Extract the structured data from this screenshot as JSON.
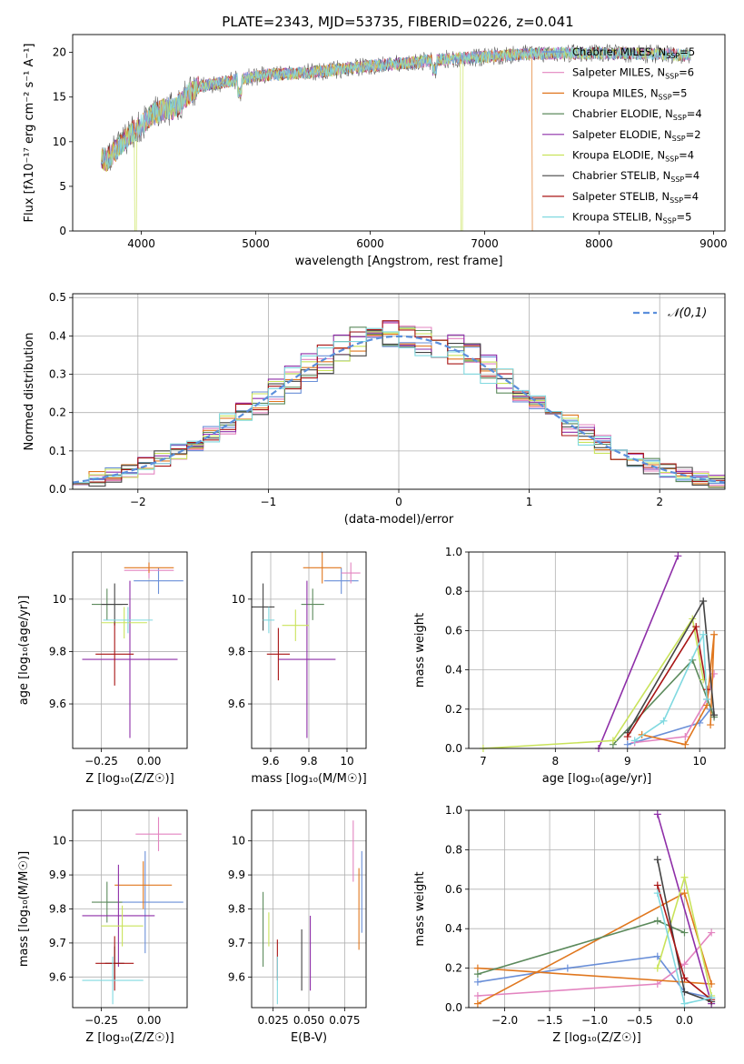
{
  "figure_title": "PLATE=2343, MJD=53735, FIBERID=0226, z=0.041",
  "models": [
    {
      "name": "Chabrier MILES",
      "n": "5",
      "color": "#6a8fd8"
    },
    {
      "name": "Salpeter MILES",
      "n": "6",
      "color": "#e384c0"
    },
    {
      "name": "Kroupa MILES",
      "n": "5",
      "color": "#e0771e"
    },
    {
      "name": "Chabrier ELODIE",
      "n": "4",
      "color": "#5c8a5c"
    },
    {
      "name": "Salpeter ELODIE",
      "n": "2",
      "color": "#8e2ea8"
    },
    {
      "name": "Kroupa ELODIE",
      "n": "4",
      "color": "#c9e35a"
    },
    {
      "name": "Chabrier STELIB",
      "n": "4",
      "color": "#444444"
    },
    {
      "name": "Salpeter STELIB",
      "n": "4",
      "color": "#a81414"
    },
    {
      "name": "Kroupa STELIB",
      "n": "5",
      "color": "#80d9e0"
    }
  ],
  "chart_data": [
    {
      "id": "spectrum",
      "type": "line",
      "xlabel": "wavelength [Angstrom, rest frame]",
      "ylabel": "Flux [fλ10⁻¹⁷ erg cm⁻² s⁻¹ A⁻¹]",
      "xlim": [
        3400,
        9100
      ],
      "ylim": [
        0,
        22
      ],
      "xticks": [
        4000,
        5000,
        6000,
        7000,
        8000,
        9000
      ],
      "yticks": [
        0,
        5,
        10,
        15,
        20
      ],
      "continuum": {
        "x": [
          3650,
          3700,
          3800,
          3900,
          4000,
          4100,
          4200,
          4300,
          4400,
          4500,
          4700,
          4900,
          5100,
          5300,
          5500,
          5800,
          6100,
          6400,
          6700,
          7000,
          7300,
          7600,
          7900,
          8200,
          8500,
          8800
        ],
        "y": [
          8.2,
          7.9,
          9.4,
          10.8,
          11.8,
          13.0,
          13.6,
          13.8,
          15.2,
          16.2,
          16.6,
          17.1,
          17.5,
          17.6,
          17.8,
          18.2,
          18.6,
          18.9,
          19.3,
          19.5,
          19.8,
          19.9,
          19.9,
          19.9,
          19.8,
          19.7
        ]
      },
      "dropouts": [
        {
          "x": 3950,
          "model": "Kroupa ELODIE"
        },
        {
          "x": 6800,
          "model": "Kroupa ELODIE"
        },
        {
          "x": 7420,
          "model": "Kroupa MILES"
        }
      ]
    },
    {
      "id": "residuals",
      "type": "histogram",
      "xlabel": "(data-model)/error",
      "ylabel": "Normed distribution",
      "xlim": [
        -2.5,
        2.5
      ],
      "ylim": [
        0,
        0.51
      ],
      "xticks": [
        -2,
        -1,
        0,
        1,
        2
      ],
      "yticks": [
        0.0,
        0.1,
        0.2,
        0.3,
        0.4,
        0.5
      ],
      "bin_width": 0.125,
      "reference_label": "𝒩(0,1)",
      "legend": "top-right"
    },
    {
      "id": "age_vs_z",
      "type": "errorbar",
      "xlabel": "Z [log₁₀(Z/Z☉)]",
      "ylabel": "age  [log₁₀(age/yr)]",
      "xlim": [
        -0.4,
        0.2
      ],
      "ylim": [
        9.43,
        10.18
      ],
      "xticks": [
        -0.25,
        0.0
      ],
      "xticklabels": [
        "−0.25",
        "0.00"
      ],
      "yticks": [
        9.6,
        9.8,
        10.0
      ],
      "points": [
        {
          "model": "Chabrier MILES",
          "x": 0.05,
          "xerr": 0.13,
          "y": 10.07,
          "yerr": 0.05
        },
        {
          "model": "Salpeter MILES",
          "x": 0.0,
          "xerr": 0.13,
          "y": 10.11,
          "yerr": 0.03
        },
        {
          "model": "Kroupa MILES",
          "x": 0.0,
          "xerr": 0.13,
          "y": 10.12,
          "yerr": 0.02
        },
        {
          "model": "Chabrier ELODIE",
          "x": -0.22,
          "xerr": 0.08,
          "y": 9.98,
          "yerr": 0.06
        },
        {
          "model": "Salpeter ELODIE",
          "x": -0.1,
          "xerr": 0.25,
          "y": 9.77,
          "yerr": 0.3
        },
        {
          "model": "Kroupa ELODIE",
          "x": -0.13,
          "xerr": 0.12,
          "y": 9.91,
          "yerr": 0.06
        },
        {
          "model": "Chabrier STELIB",
          "x": -0.18,
          "xerr": 0.07,
          "y": 9.98,
          "yerr": 0.08
        },
        {
          "model": "Salpeter STELIB",
          "x": -0.18,
          "xerr": 0.1,
          "y": 9.79,
          "yerr": 0.12
        },
        {
          "model": "Kroupa STELIB",
          "x": -0.11,
          "xerr": 0.13,
          "y": 9.92,
          "yerr": 0.05
        }
      ]
    },
    {
      "id": "age_vs_mass",
      "type": "errorbar",
      "xlabel": "mass [log₁₀(M/M☉)]",
      "xlim": [
        9.5,
        10.1
      ],
      "ylim": [
        9.43,
        10.18
      ],
      "xticks": [
        9.6,
        9.8,
        10.0
      ],
      "yticks": [
        9.6,
        9.8,
        10.0
      ],
      "points": [
        {
          "model": "Chabrier MILES",
          "x": 9.97,
          "xerr": 0.09,
          "y": 10.07,
          "yerr": 0.05
        },
        {
          "model": "Salpeter MILES",
          "x": 10.02,
          "xerr": 0.05,
          "y": 10.1,
          "yerr": 0.04
        },
        {
          "model": "Kroupa MILES",
          "x": 9.87,
          "xerr": 0.1,
          "y": 10.12,
          "yerr": 0.06
        },
        {
          "model": "Chabrier ELODIE",
          "x": 9.82,
          "xerr": 0.06,
          "y": 9.98,
          "yerr": 0.06
        },
        {
          "model": "Salpeter ELODIE",
          "x": 9.79,
          "xerr": 0.15,
          "y": 9.77,
          "yerr": 0.3
        },
        {
          "model": "Kroupa ELODIE",
          "x": 9.73,
          "xerr": 0.07,
          "y": 9.9,
          "yerr": 0.06
        },
        {
          "model": "Chabrier STELIB",
          "x": 9.56,
          "xerr": 0.06,
          "y": 9.97,
          "yerr": 0.09
        },
        {
          "model": "Salpeter STELIB",
          "x": 9.64,
          "xerr": 0.06,
          "y": 9.79,
          "yerr": 0.1
        },
        {
          "model": "Kroupa STELIB",
          "x": 9.59,
          "xerr": 0.03,
          "y": 9.92,
          "yerr": 0.05
        }
      ]
    },
    {
      "id": "weight_vs_age",
      "type": "line",
      "xlabel": "age  [log₁₀(age/yr)]",
      "ylabel": "mass weight",
      "xlim": [
        6.8,
        10.35
      ],
      "ylim": [
        0,
        1.0
      ],
      "xticks": [
        7,
        8,
        9,
        10
      ],
      "yticks": [
        0.0,
        0.2,
        0.4,
        0.6,
        0.8,
        1.0
      ],
      "grid": true,
      "series": [
        {
          "model": "Chabrier MILES",
          "x": [
            9.0,
            10.0,
            10.15
          ],
          "y": [
            0.02,
            0.13,
            0.2
          ]
        },
        {
          "model": "Salpeter MILES",
          "x": [
            9.1,
            9.8,
            10.1,
            10.2
          ],
          "y": [
            0.03,
            0.06,
            0.25,
            0.38
          ]
        },
        {
          "model": "Kroupa MILES",
          "x": [
            9.2,
            9.8,
            10.1,
            10.2,
            10.15
          ],
          "y": [
            0.07,
            0.02,
            0.22,
            0.58,
            0.12
          ]
        },
        {
          "model": "Chabrier ELODIE",
          "x": [
            8.8,
            9.9,
            10.2
          ],
          "y": [
            0.02,
            0.45,
            0.16
          ]
        },
        {
          "model": "Salpeter ELODIE",
          "x": [
            8.6,
            9.7
          ],
          "y": [
            0.0,
            0.98
          ]
        },
        {
          "model": "Kroupa ELODIE",
          "x": [
            7.0,
            8.8,
            9.9,
            10.05
          ],
          "y": [
            0.0,
            0.04,
            0.66,
            0.35
          ]
        },
        {
          "model": "Chabrier STELIB",
          "x": [
            9.0,
            10.05,
            10.2
          ],
          "y": [
            0.08,
            0.75,
            0.17
          ]
        },
        {
          "model": "Salpeter STELIB",
          "x": [
            9.0,
            9.95,
            10.1
          ],
          "y": [
            0.06,
            0.62,
            0.3
          ]
        },
        {
          "model": "Kroupa STELIB",
          "x": [
            9.1,
            9.5,
            10.05,
            10.1
          ],
          "y": [
            0.04,
            0.14,
            0.58,
            0.25
          ]
        }
      ]
    },
    {
      "id": "mass_vs_z",
      "type": "errorbar",
      "xlabel": "Z [log₁₀(Z/Z☉)]",
      "ylabel": "mass [log₁₀(M/M☉)]",
      "xlim": [
        -0.4,
        0.2
      ],
      "ylim": [
        9.51,
        10.09
      ],
      "xticks": [
        -0.25,
        0.0
      ],
      "xticklabels": [
        "−0.25",
        "0.00"
      ],
      "yticks": [
        9.6,
        9.7,
        9.8,
        9.9,
        10.0
      ],
      "points": [
        {
          "model": "Chabrier MILES",
          "x": -0.02,
          "xerr": 0.2,
          "y": 9.82,
          "yerr": 0.15
        },
        {
          "model": "Salpeter MILES",
          "x": 0.05,
          "xerr": 0.12,
          "y": 10.02,
          "yerr": 0.05
        },
        {
          "model": "Kroupa MILES",
          "x": -0.03,
          "xerr": 0.15,
          "y": 9.87,
          "yerr": 0.07
        },
        {
          "model": "Chabrier ELODIE",
          "x": -0.22,
          "xerr": 0.08,
          "y": 9.82,
          "yerr": 0.06
        },
        {
          "model": "Salpeter ELODIE",
          "x": -0.16,
          "xerr": 0.19,
          "y": 9.78,
          "yerr": 0.15
        },
        {
          "model": "Kroupa ELODIE",
          "x": -0.14,
          "xerr": 0.11,
          "y": 9.75,
          "yerr": 0.06
        },
        {
          "model": "Chabrier STELIB",
          "x": -0.18,
          "xerr": 0.05,
          "y": 9.64,
          "yerr": 0.05
        },
        {
          "model": "Salpeter STELIB",
          "x": -0.18,
          "xerr": 0.1,
          "y": 9.64,
          "yerr": 0.08
        },
        {
          "model": "Kroupa STELIB",
          "x": -0.19,
          "xerr": 0.16,
          "y": 9.59,
          "yerr": 0.07
        }
      ]
    },
    {
      "id": "mass_vs_ebv",
      "type": "errorbar",
      "xlabel": "E(B-V)",
      "xlim": [
        0.01,
        0.09
      ],
      "ylim": [
        9.51,
        10.09
      ],
      "xticks": [
        0.025,
        0.05,
        0.075
      ],
      "xticklabels": [
        "0.025",
        "0.050",
        "0.075"
      ],
      "yticks": [
        9.6,
        9.7,
        9.8,
        9.9,
        10.0
      ],
      "points": [
        {
          "model": "Chabrier MILES",
          "x": 0.087,
          "y": 9.85,
          "yerr": 0.12
        },
        {
          "model": "Salpeter MILES",
          "x": 0.081,
          "y": 9.97,
          "yerr": 0.09
        },
        {
          "model": "Kroupa MILES",
          "x": 0.085,
          "y": 9.8,
          "yerr": 0.12
        },
        {
          "model": "Chabrier ELODIE",
          "x": 0.018,
          "y": 9.74,
          "yerr": 0.11
        },
        {
          "model": "Salpeter ELODIE",
          "x": 0.051,
          "y": 9.67,
          "yerr": 0.11
        },
        {
          "model": "Kroupa ELODIE",
          "x": 0.022,
          "y": 9.74,
          "yerr": 0.05
        },
        {
          "model": "Chabrier STELIB",
          "x": 0.045,
          "y": 9.65,
          "yerr": 0.09
        },
        {
          "model": "Salpeter STELIB",
          "x": 0.028,
          "y": 9.65,
          "yerr": 0.06
        },
        {
          "model": "Kroupa STELIB",
          "x": 0.028,
          "y": 9.59,
          "yerr": 0.07
        }
      ]
    },
    {
      "id": "weight_vs_z",
      "type": "line",
      "xlabel": "Z [log₁₀(Z/Z☉)]",
      "ylabel": "mass weight",
      "xlim": [
        -2.4,
        0.45
      ],
      "ylim": [
        0,
        1.0
      ],
      "xticks": [
        -2.0,
        -1.5,
        -1.0,
        -0.5,
        0.0
      ],
      "xticklabels": [
        "−2.0",
        "−1.5",
        "−1.0",
        "−0.5",
        "0.0"
      ],
      "yticks": [
        0.0,
        0.2,
        0.4,
        0.6,
        0.8,
        1.0
      ],
      "grid": true,
      "series": [
        {
          "model": "Chabrier MILES",
          "x": [
            -2.3,
            -1.3,
            -0.3,
            0.0,
            0.3
          ],
          "y": [
            0.13,
            0.2,
            0.26,
            0.08,
            0.05
          ]
        },
        {
          "model": "Salpeter MILES",
          "x": [
            -2.3,
            -0.3,
            0.0,
            0.3
          ],
          "y": [
            0.06,
            0.12,
            0.22,
            0.38
          ]
        },
        {
          "model": "Kroupa MILES",
          "x": [
            -2.3,
            0.0,
            0.3,
            -2.3
          ],
          "y": [
            0.02,
            0.58,
            0.12,
            0.2
          ]
        },
        {
          "model": "Chabrier ELODIE",
          "x": [
            -2.3,
            -0.3,
            0.0
          ],
          "y": [
            0.17,
            0.44,
            0.38
          ]
        },
        {
          "model": "Salpeter ELODIE",
          "x": [
            -0.3,
            0.3
          ],
          "y": [
            0.98,
            0.02
          ]
        },
        {
          "model": "Kroupa ELODIE",
          "x": [
            -0.3,
            0.0,
            0.3
          ],
          "y": [
            0.2,
            0.66,
            0.06
          ]
        },
        {
          "model": "Chabrier STELIB",
          "x": [
            -0.3,
            0.0,
            0.3
          ],
          "y": [
            0.75,
            0.08,
            0.03
          ]
        },
        {
          "model": "Salpeter STELIB",
          "x": [
            -0.3,
            0.0,
            0.3
          ],
          "y": [
            0.62,
            0.15,
            0.04
          ]
        },
        {
          "model": "Kroupa STELIB",
          "x": [
            -0.3,
            0.0,
            0.3
          ],
          "y": [
            0.58,
            0.02,
            0.05
          ]
        }
      ]
    }
  ]
}
